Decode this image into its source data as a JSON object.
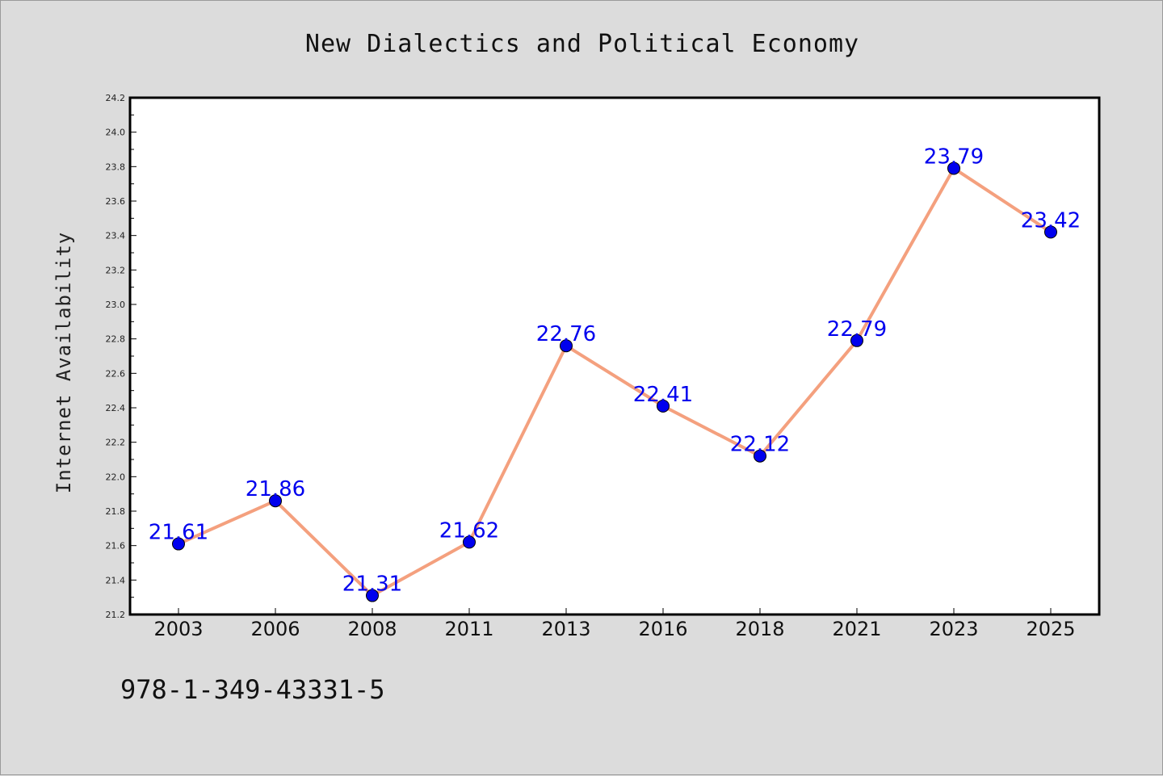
{
  "chart_data": {
    "type": "line",
    "title": "New Dialectics and Political Economy",
    "ylabel": "Internet Availability",
    "xlabel": "",
    "categories": [
      "2003",
      "2006",
      "2008",
      "2011",
      "2013",
      "2016",
      "2018",
      "2021",
      "2023",
      "2025"
    ],
    "series": [
      {
        "values": [
          21.61,
          21.86,
          21.31,
          21.62,
          22.76,
          22.41,
          22.12,
          22.79,
          23.79,
          23.42
        ],
        "line_color": "#f4a07e",
        "marker_color": "#0000ee"
      }
    ],
    "data_labels": [
      "21.61",
      "21.86",
      "21.31",
      "21.62",
      "22.76",
      "22.41",
      "22.12",
      "22.79",
      "23.79",
      "23.42"
    ],
    "ylim": [
      21.2,
      24.2
    ],
    "yticks": [
      "21.2",
      "21.4",
      "21.6",
      "21.8",
      "22.0",
      "22.2",
      "22.4",
      "22.6",
      "22.8",
      "23.0",
      "23.2",
      "23.4",
      "23.6",
      "23.8",
      "24.0",
      "24.2"
    ],
    "grid": false,
    "legend": "none"
  },
  "footer": {
    "isbn": "978-1-349-43331-5"
  }
}
